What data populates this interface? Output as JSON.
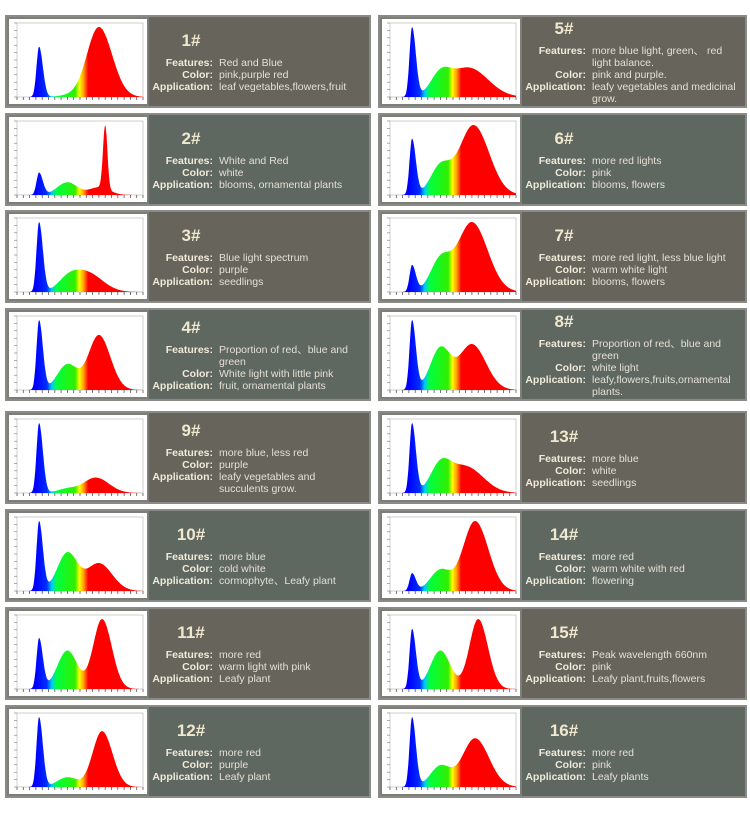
{
  "labels": {
    "features": "Features:",
    "color": "Color:",
    "application": "Application:"
  },
  "colors": {
    "panel_dark": "#67645b",
    "panel_gray": "#5f6761",
    "text": "#ece6d3"
  },
  "cards": [
    {
      "number": "1#",
      "features": "Red and Blue",
      "color": "pink,purple red",
      "application": "leaf vegetables,flowers,fruit"
    },
    {
      "number": "2#",
      "features": "White and Red",
      "color": "white",
      "application": "blooms, ornamental plants"
    },
    {
      "number": "3#",
      "features": "Blue light spectrum",
      "color": "purple",
      "application": "seedlings"
    },
    {
      "number": "4#",
      "features": "Proportion of red、blue and green",
      "color": "White light with little pink",
      "application": "fruit, ornamental plants"
    },
    {
      "number": "9#",
      "features": "more blue,  less red",
      "color": "purple",
      "application": "leafy vegetables and succulents grow."
    },
    {
      "number": "10#",
      "features": "more blue",
      "color": "cold white",
      "application": "cormophyte、Leafy plant"
    },
    {
      "number": "11#",
      "features": "more red",
      "color": "warm light with pink",
      "application": "Leafy plant"
    },
    {
      "number": "12#",
      "features": "more red",
      "color": "purple",
      "application": "Leafy plant"
    },
    {
      "number": "5#",
      "features": "more blue light, green、 red light balance.",
      "color": "pink and purple.",
      "application": "leafy vegetables and medicinal grow."
    },
    {
      "number": "6#",
      "features": "more red lights",
      "color": "pink",
      "application": "blooms, flowers"
    },
    {
      "number": "7#",
      "features": "more red light, less blue light",
      "color": "warm white light",
      "application": "blooms, flowers"
    },
    {
      "number": "8#",
      "features": "Proportion of red、blue and green",
      "color": "white light",
      "application": "leafy,flowers,fruits,ornamental plants."
    },
    {
      "number": "13#",
      "features": "more blue",
      "color": "white",
      "application": "seedlings"
    },
    {
      "number": "14#",
      "features": "more red",
      "color": "warm white with red",
      "application": "flowering"
    },
    {
      "number": "15#",
      "features": "Peak wavelength 660nm",
      "color": "pink",
      "application": "Leafy plant,fruits,flowers"
    },
    {
      "number": "16#",
      "features": "more red",
      "color": "pink",
      "application": "Leafy plants"
    }
  ]
}
